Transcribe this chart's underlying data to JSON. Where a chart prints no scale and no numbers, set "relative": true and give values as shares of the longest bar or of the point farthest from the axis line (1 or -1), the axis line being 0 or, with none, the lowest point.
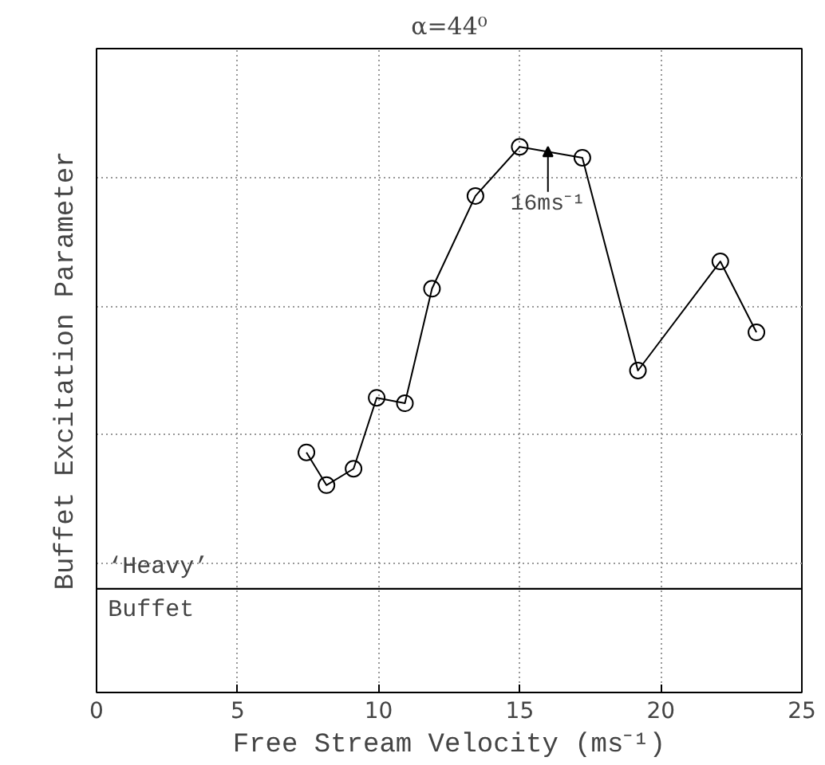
{
  "chart_data": {
    "type": "line",
    "title": "α=44⁰",
    "xlabel": "Free Stream Velocity (ms⁻¹)",
    "ylabel": "Buffet Excitation Parameter",
    "relative": true,
    "xlim": [
      0,
      25
    ],
    "xticks": [
      0,
      5,
      10,
      15,
      20,
      25
    ],
    "grid": true,
    "marker": "circle",
    "line_style": "solid",
    "series": [
      {
        "color": "#000000",
        "x": [
          7.44,
          8.15,
          9.11,
          9.93,
          10.93,
          11.89,
          13.43,
          15.0,
          17.22,
          19.19,
          22.11,
          23.39
        ],
        "values": [
          0.44,
          0.38,
          0.41,
          0.54,
          0.53,
          0.74,
          0.91,
          1.0,
          0.98,
          0.59,
          0.79,
          0.66
        ]
      }
    ],
    "ref_lines": [
      {
        "axis": "y",
        "value": 0.19,
        "label": "‘Heavy’\nBuffet",
        "color": "#000000",
        "line_style": "solid"
      }
    ],
    "annotations": [
      {
        "text": "16ms⁻¹",
        "x": 16,
        "y": 1.0
      }
    ]
  }
}
